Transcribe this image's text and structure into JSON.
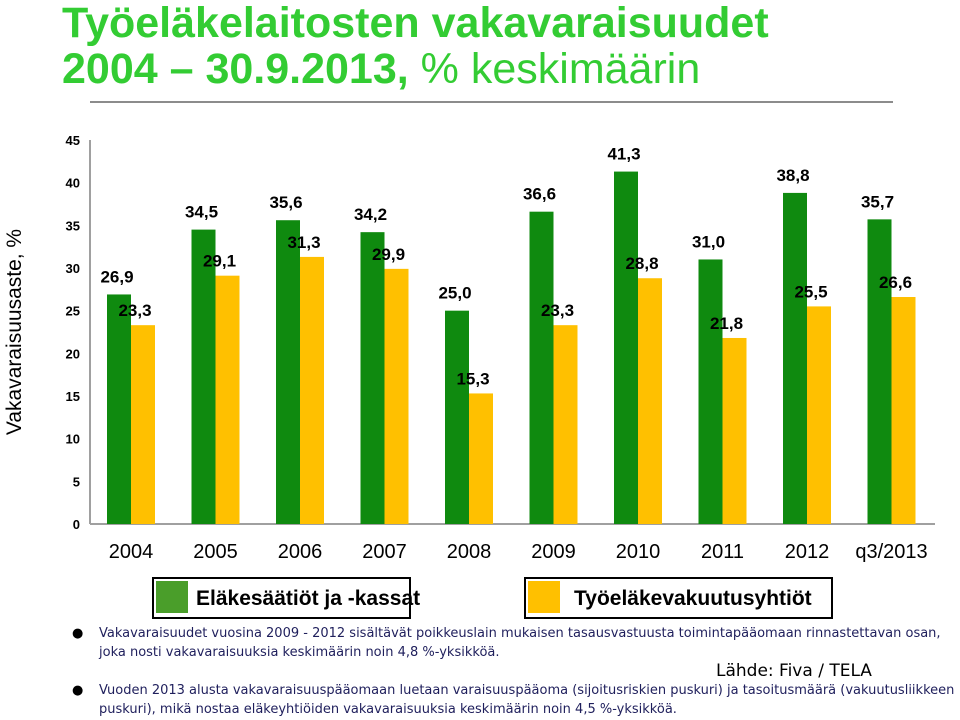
{
  "slide": {
    "title_line1": "Työeläkelaitosten vakavaraisuudet",
    "title_line2_bold": "2004 – 30.9.2013,",
    "title_line2_rest": " % keskimäärin",
    "source": "Lähde: Fiva / TELA",
    "notes": [
      "Vakavaraisuudet vuosina 2009 - 2012 sisältävät poikkeuslain mukaisen tasausvastuusta toimintapääomaan rinnastettavan osan, joka nosti vakavaraisuuksia keskimäärin noin 4,8 %-yksikköä.",
      "Vuoden 2013 alusta vakavaraisuuspääomaan luetaan  varaisuuspääoma (sijoitusriskien puskuri) ja tasoitusmäärä (vakuutusliikkeen puskuri), mikä nostaa eläkeyhtiöiden vakavaraisuuksia keskimäärin noin 4,5 %-yksikköä."
    ]
  },
  "chart_data": {
    "type": "bar",
    "ylabel": "Vakavaraisuusaste, %",
    "ylim": [
      0,
      45
    ],
    "yticks": [
      "0",
      "5",
      "10",
      "15",
      "20",
      "25",
      "30",
      "35",
      "40",
      "45"
    ],
    "categories": [
      "2004",
      "2005",
      "2006",
      "2007",
      "2008",
      "2009",
      "2010",
      "2011",
      "2012",
      "q3/2013"
    ],
    "series": [
      {
        "name": "Eläkesäätiöt ja -kassat",
        "color": "#0f8a0f",
        "values": [
          26.9,
          34.5,
          35.6,
          34.2,
          25.0,
          36.6,
          41.3,
          31.0,
          38.8,
          35.7
        ],
        "labels": [
          "26,9",
          "34,5",
          "35,6",
          "34,2",
          "25,0",
          "36,6",
          "41,3",
          "31,0",
          "38,8",
          "35,7"
        ]
      },
      {
        "name": "Työeläkevakuutusyhtiöt",
        "color": "#ffc000",
        "values": [
          23.3,
          29.1,
          31.3,
          29.9,
          15.3,
          23.3,
          28.8,
          21.8,
          25.5,
          26.6
        ],
        "labels": [
          "23,3",
          "29,1",
          "31,3",
          "29,9",
          "15,3",
          "23,3",
          "28,8",
          "21,8",
          "25,5",
          "26,6"
        ]
      }
    ],
    "grid": false,
    "legend_position": "bottom",
    "legend_swatch_colors": [
      "#4a9e2a",
      "#ffc000"
    ]
  }
}
